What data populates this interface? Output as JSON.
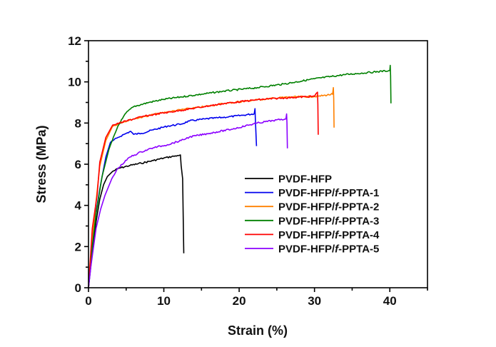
{
  "chart_data": {
    "type": "line",
    "title": "",
    "xlabel": "Strain (%)",
    "ylabel": "Stress (MPa)",
    "xlim": [
      0,
      45
    ],
    "ylim": [
      0,
      12
    ],
    "xticks": [
      0,
      10,
      20,
      30,
      40
    ],
    "yticks": [
      0,
      2,
      4,
      6,
      8,
      10,
      12
    ],
    "x_minor_step": 5,
    "y_minor_step": 1,
    "grid": false,
    "legend_position": "center-right",
    "series": [
      {
        "name": "PVDF-HFP",
        "legend_parts": [
          "PVDF-HFP"
        ],
        "color": "#000000",
        "points": [
          [
            0,
            0
          ],
          [
            0.5,
            1.7
          ],
          [
            1.0,
            3.2
          ],
          [
            1.5,
            4.3
          ],
          [
            2.0,
            5.0
          ],
          [
            2.5,
            5.4
          ],
          [
            3.2,
            5.65
          ],
          [
            4.0,
            5.8
          ],
          [
            5.5,
            5.94
          ],
          [
            7.0,
            6.05
          ],
          [
            8.6,
            6.18
          ],
          [
            10.0,
            6.3
          ],
          [
            11.8,
            6.42
          ],
          [
            12.2,
            6.45
          ],
          [
            12.3,
            5.94
          ],
          [
            12.5,
            5.3
          ],
          [
            12.65,
            1.67
          ]
        ]
      },
      {
        "name": "PVDF-HFP/f-PPTA-1",
        "legend_parts": [
          "PVDF-HFP/",
          "f",
          "-PPTA-1"
        ],
        "color": "#0000ee",
        "points": [
          [
            0,
            0
          ],
          [
            0.5,
            2.0
          ],
          [
            1.0,
            3.7
          ],
          [
            1.6,
            5.0
          ],
          [
            2.3,
            6.35
          ],
          [
            2.9,
            7.05
          ],
          [
            3.9,
            7.3
          ],
          [
            5.0,
            7.5
          ],
          [
            5.6,
            7.6
          ],
          [
            6.0,
            7.45
          ],
          [
            7.0,
            7.5
          ],
          [
            8.6,
            7.67
          ],
          [
            10.5,
            7.85
          ],
          [
            12.3,
            7.95
          ],
          [
            13.4,
            8.1
          ],
          [
            15.5,
            8.2
          ],
          [
            18.6,
            8.3
          ],
          [
            20.5,
            8.38
          ],
          [
            22.0,
            8.45
          ],
          [
            22.1,
            8.7
          ],
          [
            22.15,
            8.2
          ],
          [
            22.3,
            6.88
          ]
        ]
      },
      {
        "name": "PVDF-HFP/f-PPTA-2",
        "legend_parts": [
          "PVDF-HFP/",
          "f",
          "-PPTA-2"
        ],
        "color": "#ff8000",
        "points": [
          [
            0,
            0
          ],
          [
            0.5,
            2.3
          ],
          [
            1.0,
            4.2
          ],
          [
            1.5,
            5.9
          ],
          [
            2.3,
            7.15
          ],
          [
            3.2,
            7.85
          ],
          [
            4.5,
            8.05
          ],
          [
            6.0,
            8.2
          ],
          [
            9.1,
            8.45
          ],
          [
            12.3,
            8.65
          ],
          [
            15.4,
            8.8
          ],
          [
            18.0,
            8.95
          ],
          [
            22.4,
            9.13
          ],
          [
            26.0,
            9.25
          ],
          [
            30.5,
            9.3
          ],
          [
            32.4,
            9.4
          ],
          [
            32.5,
            9.72
          ],
          [
            32.55,
            9.2
          ],
          [
            32.6,
            7.78
          ]
        ]
      },
      {
        "name": "PVDF-HFP/f-PPTA-3",
        "legend_parts": [
          "PVDF-HFP/",
          "f",
          "-PPTA-3"
        ],
        "color": "#008000",
        "points": [
          [
            0,
            0
          ],
          [
            0.5,
            2.0
          ],
          [
            1.0,
            3.6
          ],
          [
            1.8,
            5.4
          ],
          [
            2.7,
            6.7
          ],
          [
            3.9,
            7.85
          ],
          [
            5.0,
            8.5
          ],
          [
            6.0,
            8.8
          ],
          [
            8.0,
            9.0
          ],
          [
            10.0,
            9.15
          ],
          [
            12.3,
            9.27
          ],
          [
            15.0,
            9.4
          ],
          [
            18.0,
            9.55
          ],
          [
            22.4,
            9.72
          ],
          [
            26.0,
            9.9
          ],
          [
            30.0,
            10.15
          ],
          [
            34.0,
            10.35
          ],
          [
            37.0,
            10.45
          ],
          [
            40.0,
            10.55
          ],
          [
            40.05,
            10.8
          ],
          [
            40.1,
            10.3
          ],
          [
            40.15,
            8.96
          ]
        ]
      },
      {
        "name": "PVDF-HFP/f-PPTA-4",
        "legend_parts": [
          "PVDF-HFP/",
          "f",
          "-PPTA-4"
        ],
        "color": "#ff0000",
        "points": [
          [
            0,
            0
          ],
          [
            0.5,
            2.88
          ],
          [
            1.15,
            4.5
          ],
          [
            1.5,
            6.1
          ],
          [
            2.3,
            7.3
          ],
          [
            3.2,
            7.9
          ],
          [
            3.7,
            7.95
          ],
          [
            5.0,
            8.1
          ],
          [
            7.0,
            8.3
          ],
          [
            9.1,
            8.44
          ],
          [
            12.0,
            8.6
          ],
          [
            15.4,
            8.8
          ],
          [
            18.0,
            8.95
          ],
          [
            22.4,
            9.13
          ],
          [
            26.0,
            9.22
          ],
          [
            30.0,
            9.3
          ],
          [
            30.4,
            9.5
          ],
          [
            30.45,
            8.9
          ],
          [
            30.5,
            7.43
          ]
        ]
      },
      {
        "name": "PVDF-HFP/f-PPTA-5",
        "legend_parts": [
          "PVDF-HFP/",
          "f",
          "-PPTA-5"
        ],
        "color": "#8b00ff",
        "points": [
          [
            0,
            0
          ],
          [
            0.3,
            1.0
          ],
          [
            1.0,
            2.88
          ],
          [
            1.6,
            3.8
          ],
          [
            2.2,
            4.5
          ],
          [
            3.1,
            5.3
          ],
          [
            3.9,
            5.8
          ],
          [
            5.5,
            6.35
          ],
          [
            7.0,
            6.6
          ],
          [
            8.6,
            6.8
          ],
          [
            10.5,
            6.95
          ],
          [
            12.3,
            7.15
          ],
          [
            13.4,
            7.32
          ],
          [
            16.0,
            7.5
          ],
          [
            19.0,
            7.7
          ],
          [
            22.4,
            8.0
          ],
          [
            24.5,
            8.12
          ],
          [
            26.2,
            8.2
          ],
          [
            26.3,
            8.44
          ],
          [
            26.35,
            8.0
          ],
          [
            26.4,
            6.77
          ]
        ]
      }
    ]
  }
}
